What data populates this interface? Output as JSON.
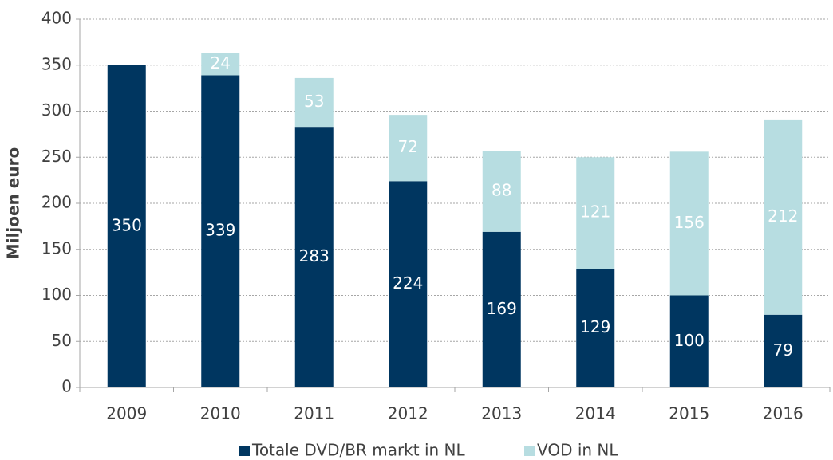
{
  "chart_data": {
    "type": "stacked_bar",
    "y_label": "Miljoen euro",
    "categories": [
      "2009",
      "2010",
      "2011",
      "2012",
      "2013",
      "2014",
      "2015",
      "2016"
    ],
    "series": [
      {
        "name": "Totale DVD/BR markt in NL",
        "color": "#003660",
        "values": [
          350,
          339,
          283,
          224,
          169,
          129,
          100,
          79
        ]
      },
      {
        "name": "VOD in NL",
        "color": "#b7dde1",
        "values": [
          null,
          24,
          53,
          72,
          88,
          121,
          156,
          212
        ]
      }
    ],
    "ylim": [
      0,
      400
    ],
    "yticks": [
      0,
      50,
      100,
      150,
      200,
      250,
      300,
      350,
      400
    ],
    "grid": true
  }
}
